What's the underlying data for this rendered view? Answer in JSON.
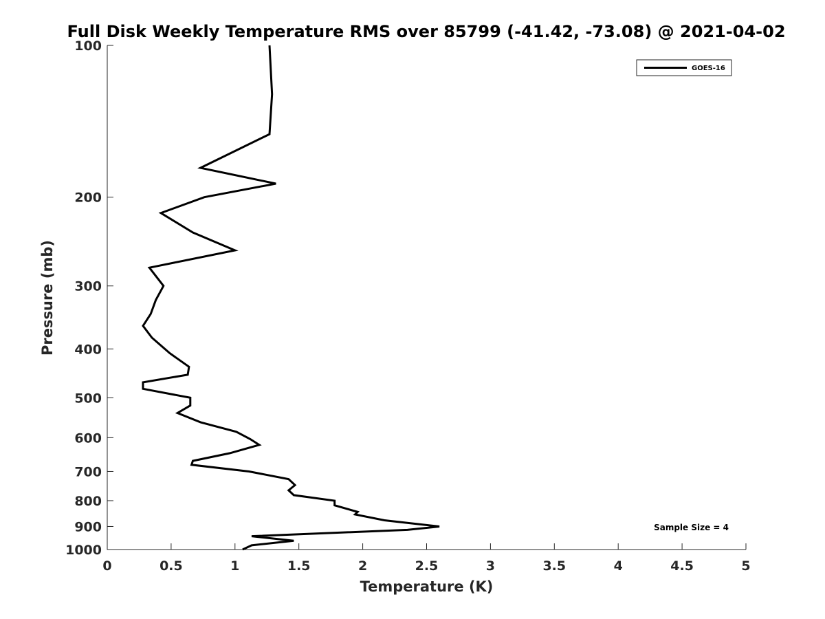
{
  "chart_data": {
    "type": "line",
    "title": "Full Disk Weekly Temperature RMS over 85799 (-41.42, -73.08) @ 2021-04-02",
    "xlabel": "Temperature (K)",
    "ylabel": "Pressure (mb)",
    "xlim": [
      0,
      5
    ],
    "ylim": [
      100,
      1000
    ],
    "yscale": "log",
    "y_reversed": true,
    "grid": false,
    "legend_position": "top-right",
    "xticks": [
      0,
      0.5,
      1,
      1.5,
      2,
      2.5,
      3,
      3.5,
      4,
      4.5,
      5
    ],
    "xtick_labels": [
      "0",
      "0.5",
      "1",
      "1.5",
      "2",
      "2.5",
      "3",
      "3.5",
      "4",
      "4.5",
      "5"
    ],
    "yticks": [
      100,
      200,
      300,
      400,
      500,
      600,
      700,
      800,
      900,
      1000
    ],
    "ytick_labels": [
      "100",
      "200",
      "300",
      "400",
      "500",
      "600",
      "700",
      "800",
      "900",
      "1000"
    ],
    "series": [
      {
        "name": "GOES-16",
        "color": "#000000",
        "points": [
          [
            1.27,
            100
          ],
          [
            1.29,
            125
          ],
          [
            1.27,
            150
          ],
          [
            0.73,
            175
          ],
          [
            1.32,
            188
          ],
          [
            0.76,
            200
          ],
          [
            0.42,
            215
          ],
          [
            0.67,
            235
          ],
          [
            1.0,
            255
          ],
          [
            0.33,
            276
          ],
          [
            0.44,
            300
          ],
          [
            0.38,
            320
          ],
          [
            0.34,
            341
          ],
          [
            0.28,
            360
          ],
          [
            0.35,
            380
          ],
          [
            0.49,
            408
          ],
          [
            0.64,
            434
          ],
          [
            0.63,
            450
          ],
          [
            0.28,
            466
          ],
          [
            0.28,
            480
          ],
          [
            0.65,
            500
          ],
          [
            0.65,
            518
          ],
          [
            0.55,
            536
          ],
          [
            0.73,
            559
          ],
          [
            1.01,
            584
          ],
          [
            1.12,
            604
          ],
          [
            1.19,
            620
          ],
          [
            0.96,
            644
          ],
          [
            0.67,
            667
          ],
          [
            0.66,
            679
          ],
          [
            1.11,
            700
          ],
          [
            1.42,
            725
          ],
          [
            1.47,
            745
          ],
          [
            1.42,
            763
          ],
          [
            1.46,
            780
          ],
          [
            1.78,
            800
          ],
          [
            1.78,
            817
          ],
          [
            1.96,
            842
          ],
          [
            1.94,
            852
          ],
          [
            2.17,
            875
          ],
          [
            2.6,
            900
          ],
          [
            2.35,
            914
          ],
          [
            1.13,
            941
          ],
          [
            1.46,
            961
          ],
          [
            1.13,
            981
          ],
          [
            1.06,
            1000
          ]
        ]
      }
    ],
    "annotations": [
      "Sample Size = 4"
    ]
  }
}
